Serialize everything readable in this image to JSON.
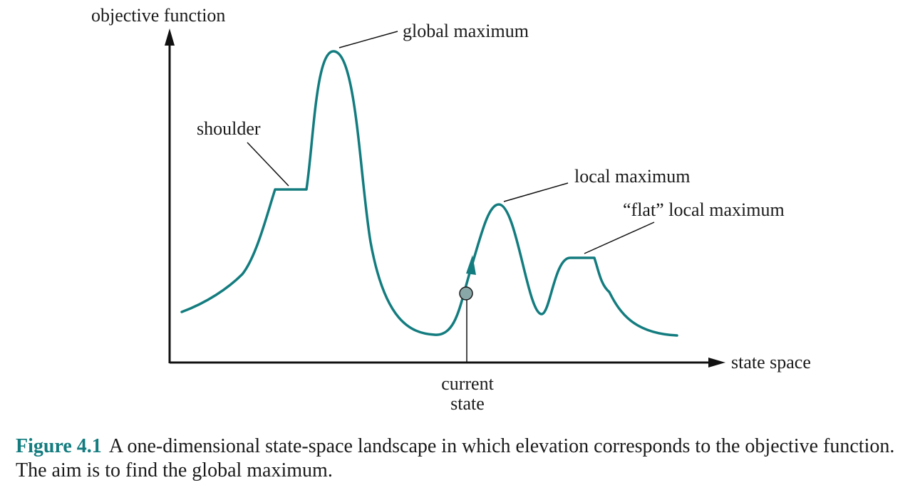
{
  "labels": {
    "y_axis": "objective function",
    "x_axis": "state space",
    "global_max": "global maximum",
    "shoulder": "shoulder",
    "local_max": "local maximum",
    "flat_local_max": "“flat” local maximum",
    "current_state_line1": "current",
    "current_state_line2": "state"
  },
  "caption": {
    "label": "Figure 4.1",
    "text": "A one-dimensional state-space landscape in which elevation corresponds to the objective function. The aim is to find the global maximum."
  },
  "colors": {
    "curve": "#137c7f",
    "axis": "#111111",
    "caption_label": "#137c7f",
    "marker_fill": "#8aa7a8"
  }
}
